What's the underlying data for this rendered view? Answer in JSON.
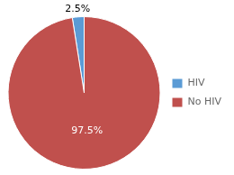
{
  "chart_data": {
    "type": "pie",
    "categories": [
      "HIV",
      "No HIV"
    ],
    "values": [
      2.5,
      97.5
    ],
    "value_labels": [
      "2.5%",
      "97.5%"
    ],
    "colors": [
      "#5b9bd5",
      "#c0504d"
    ],
    "data_labels": true,
    "legend": "right"
  }
}
